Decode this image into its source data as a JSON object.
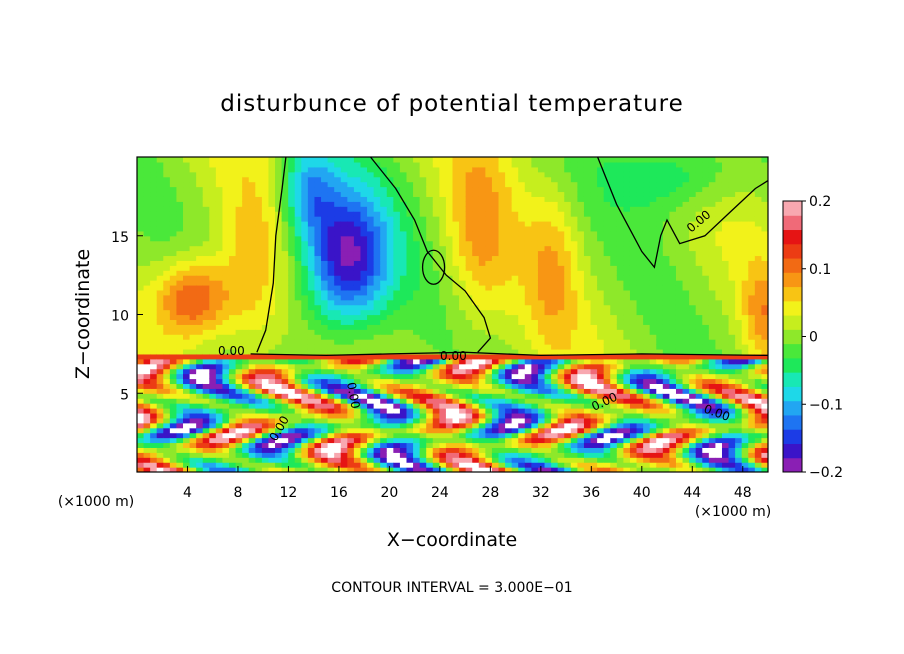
{
  "chart_data": {
    "type": "heatmap",
    "title": "disturbunce of potential temperature",
    "xlabel": "X−coordinate",
    "ylabel": "Z−coordinate",
    "x_unit_left": "(×1000 m)",
    "x_unit_right": "(×1000 m)",
    "xlim": [
      0,
      50
    ],
    "ylim": [
      0,
      20
    ],
    "x_ticks": [
      "4",
      "8",
      "12",
      "16",
      "20",
      "24",
      "28",
      "32",
      "36",
      "40",
      "44",
      "48"
    ],
    "x_tick_values": [
      4,
      8,
      12,
      16,
      20,
      24,
      28,
      32,
      36,
      40,
      44,
      48
    ],
    "y_ticks": [
      "5",
      "10",
      "15"
    ],
    "y_tick_values": [
      5,
      10,
      15
    ],
    "colorbar": {
      "range": [
        -0.2,
        0.2
      ],
      "tick_labels": [
        "0.2",
        "0.1",
        "0",
        "−0.1",
        "−0.2"
      ],
      "tick_values": [
        0.2,
        0.1,
        0,
        -0.1,
        -0.2
      ],
      "colors": [
        "#8a1fb4",
        "#3a14c8",
        "#1c3ce6",
        "#1e74f2",
        "#22a6f2",
        "#1ed8e8",
        "#18e8b4",
        "#1ee85a",
        "#4ae83a",
        "#8ee82a",
        "#c6ee1e",
        "#f2f21a",
        "#f8c414",
        "#f89614",
        "#f26a14",
        "#ec3c14",
        "#e61414",
        "#f06a78",
        "#f8a8b0"
      ]
    },
    "contour_labels": [
      "0.00",
      "0.00",
      "0.00",
      "0.00",
      "0.00",
      "0.00",
      "0.00"
    ],
    "footer": "CONTOUR INTERVAL = 3.000E−01",
    "grid": false
  }
}
